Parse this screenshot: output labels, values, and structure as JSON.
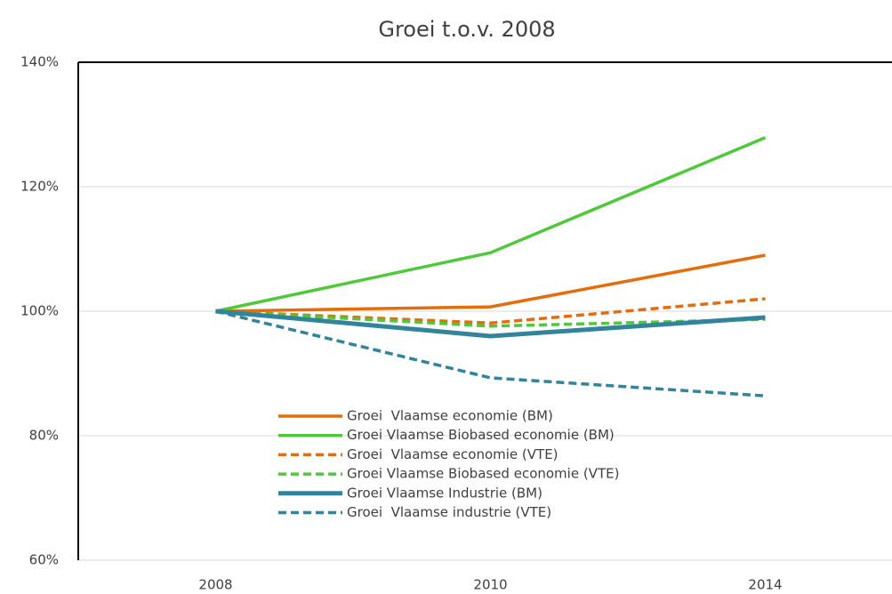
{
  "chart_data": {
    "type": "line",
    "title": "Groei t.o.v. 2008",
    "categories": [
      "2008",
      "2010",
      "2014"
    ],
    "series": [
      {
        "name": "Groei  Vlaamse economie (BM)",
        "color": "#e46c0a",
        "style": "solid",
        "weight": "normal",
        "values": [
          100,
          100.7,
          109
        ]
      },
      {
        "name": "Groei Vlaamse Biobased economie (BM)",
        "color": "#4fc83a",
        "style": "solid",
        "weight": "normal",
        "values": [
          100,
          109.4,
          127.9
        ]
      },
      {
        "name": "Groei  Vlaamse economie (VTE)",
        "color": "#e46c0a",
        "style": "dashed",
        "weight": "normal",
        "values": [
          100,
          98.1,
          102
        ]
      },
      {
        "name": "Groei Vlaamse Biobased economie (VTE)",
        "color": "#4fc83a",
        "style": "dashed",
        "weight": "normal",
        "values": [
          100,
          97.6,
          98.7
        ]
      },
      {
        "name": "Groei Vlaamse Industrie (BM)",
        "color": "#31849b",
        "style": "solid",
        "weight": "bold",
        "values": [
          100,
          96,
          99
        ]
      },
      {
        "name": "Groei  Vlaamse industrie (VTE)",
        "color": "#31849b",
        "style": "dashed",
        "weight": "normal",
        "values": [
          100,
          89.3,
          86.4
        ]
      }
    ],
    "ylim": [
      60,
      140
    ],
    "yticks": [
      {
        "value": 60,
        "label": "60%"
      },
      {
        "value": 80,
        "label": "80%"
      },
      {
        "value": 100,
        "label": "100%"
      },
      {
        "value": 120,
        "label": "120%"
      },
      {
        "value": 140,
        "label": "140%"
      }
    ],
    "grid": true,
    "legend": "bottom"
  }
}
